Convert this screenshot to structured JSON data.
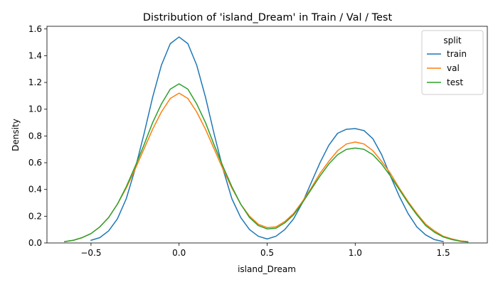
{
  "chart_data": {
    "type": "line",
    "title": "Distribution of 'island_Dream' in Train / Val / Test",
    "xlabel": "island_Dream",
    "ylabel": "Density",
    "xlim": [
      -0.75,
      1.75
    ],
    "ylim": [
      0,
      1.62
    ],
    "xticks": [
      -0.5,
      0.0,
      0.5,
      1.0,
      1.5
    ],
    "xtick_labels": [
      "−0.5",
      "0.0",
      "0.5",
      "1.0",
      "1.5"
    ],
    "yticks": [
      0.0,
      0.2,
      0.4,
      0.6,
      0.8,
      1.0,
      1.2,
      1.4,
      1.6
    ],
    "ytick_labels": [
      "0.0",
      "0.2",
      "0.4",
      "0.6",
      "0.8",
      "1.0",
      "1.2",
      "1.4",
      "1.6"
    ],
    "grid": false,
    "legend": {
      "title": "split",
      "placement": "top-right"
    },
    "series": [
      {
        "name": "train",
        "color": "#1f77b4",
        "x": [
          -0.5,
          -0.45,
          -0.4,
          -0.35,
          -0.3,
          -0.25,
          -0.2,
          -0.15,
          -0.1,
          -0.05,
          0.0,
          0.05,
          0.1,
          0.15,
          0.2,
          0.25,
          0.3,
          0.35,
          0.4,
          0.45,
          0.5,
          0.55,
          0.6,
          0.65,
          0.7,
          0.75,
          0.8,
          0.85,
          0.9,
          0.95,
          1.0,
          1.05,
          1.1,
          1.15,
          1.2,
          1.25,
          1.3,
          1.35,
          1.4,
          1.45,
          1.5
        ],
        "y": [
          0.02,
          0.04,
          0.09,
          0.18,
          0.33,
          0.55,
          0.81,
          1.09,
          1.33,
          1.49,
          1.54,
          1.49,
          1.33,
          1.09,
          0.81,
          0.55,
          0.33,
          0.19,
          0.1,
          0.05,
          0.03,
          0.05,
          0.1,
          0.18,
          0.3,
          0.45,
          0.6,
          0.73,
          0.82,
          0.85,
          0.855,
          0.84,
          0.78,
          0.66,
          0.5,
          0.35,
          0.22,
          0.12,
          0.06,
          0.025,
          0.01
        ]
      },
      {
        "name": "val",
        "color": "#ff7f0e",
        "x": [
          -0.65,
          -0.6,
          -0.55,
          -0.5,
          -0.45,
          -0.4,
          -0.35,
          -0.3,
          -0.25,
          -0.2,
          -0.15,
          -0.1,
          -0.05,
          0.0,
          0.05,
          0.1,
          0.15,
          0.2,
          0.25,
          0.3,
          0.35,
          0.4,
          0.45,
          0.5,
          0.55,
          0.6,
          0.65,
          0.7,
          0.75,
          0.8,
          0.85,
          0.9,
          0.95,
          1.0,
          1.05,
          1.1,
          1.15,
          1.2,
          1.25,
          1.3,
          1.35,
          1.4,
          1.45,
          1.5,
          1.55,
          1.6,
          1.64
        ],
        "y": [
          0.01,
          0.02,
          0.04,
          0.07,
          0.12,
          0.19,
          0.29,
          0.41,
          0.55,
          0.7,
          0.85,
          0.98,
          1.08,
          1.12,
          1.08,
          0.98,
          0.85,
          0.7,
          0.55,
          0.41,
          0.29,
          0.2,
          0.14,
          0.115,
          0.12,
          0.16,
          0.22,
          0.31,
          0.41,
          0.52,
          0.61,
          0.69,
          0.74,
          0.755,
          0.74,
          0.69,
          0.61,
          0.52,
          0.41,
          0.31,
          0.22,
          0.14,
          0.09,
          0.05,
          0.03,
          0.015,
          0.01
        ]
      },
      {
        "name": "test",
        "color": "#2ca02c",
        "x": [
          -0.65,
          -0.6,
          -0.55,
          -0.5,
          -0.45,
          -0.4,
          -0.35,
          -0.3,
          -0.25,
          -0.2,
          -0.15,
          -0.1,
          -0.05,
          0.0,
          0.05,
          0.1,
          0.15,
          0.2,
          0.25,
          0.3,
          0.35,
          0.4,
          0.45,
          0.5,
          0.55,
          0.6,
          0.65,
          0.7,
          0.75,
          0.8,
          0.85,
          0.9,
          0.95,
          1.0,
          1.05,
          1.1,
          1.15,
          1.2,
          1.25,
          1.3,
          1.35,
          1.4,
          1.45,
          1.5,
          1.55,
          1.6,
          1.64
        ],
        "y": [
          0.01,
          0.02,
          0.04,
          0.07,
          0.12,
          0.19,
          0.29,
          0.42,
          0.57,
          0.73,
          0.9,
          1.04,
          1.15,
          1.19,
          1.15,
          1.04,
          0.9,
          0.73,
          0.57,
          0.42,
          0.29,
          0.19,
          0.13,
          0.105,
          0.11,
          0.15,
          0.21,
          0.3,
          0.4,
          0.5,
          0.59,
          0.66,
          0.7,
          0.71,
          0.7,
          0.66,
          0.59,
          0.5,
          0.4,
          0.3,
          0.21,
          0.13,
          0.08,
          0.045,
          0.025,
          0.012,
          0.007
        ]
      }
    ]
  }
}
